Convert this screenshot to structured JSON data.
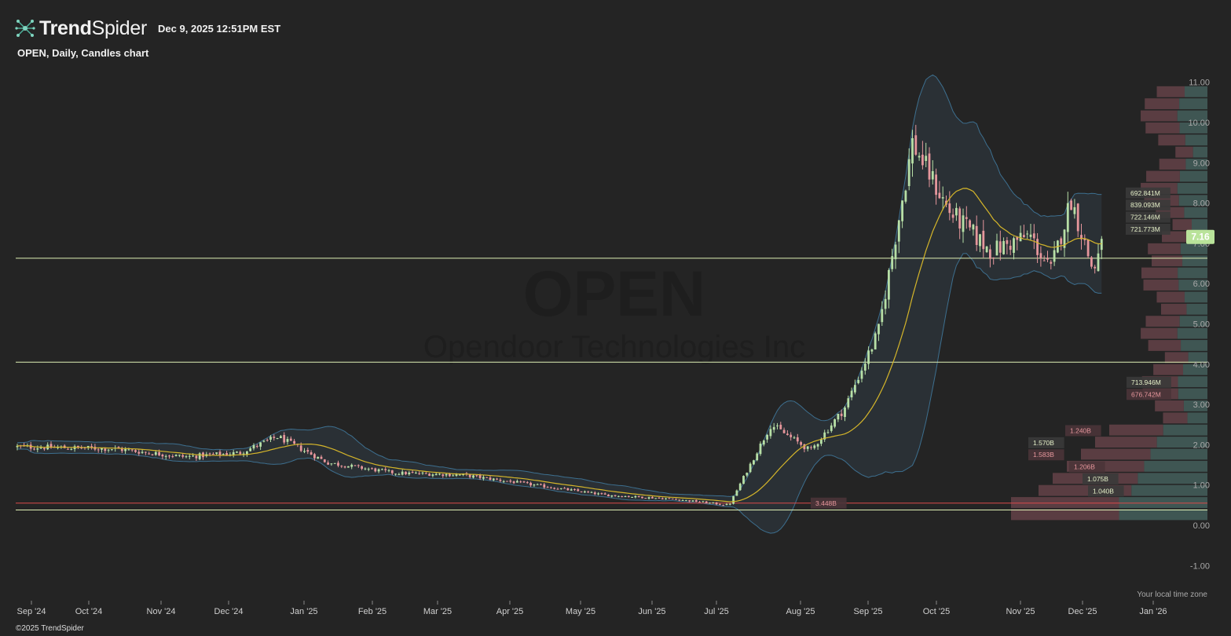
{
  "header": {
    "brand_bold": "Trend",
    "brand_regular": "Spider",
    "timestamp": "Dec 9, 2025 12:51PM EST"
  },
  "subtitle": "OPEN, Daily, Candles chart",
  "watermark": {
    "ticker": "OPEN",
    "company": "Opendoor Technologies Inc"
  },
  "footer": {
    "copyright": "©2025 TrendSpider",
    "timezone_note": "Your local time zone"
  },
  "colors": {
    "background": "#242424",
    "up": "#b7dfa6",
    "down": "#e6969c",
    "sma": "#d4b52a",
    "bollinger": "#3d6f8f",
    "hline": "#dff0b5",
    "red_line": "#d94a4a",
    "price_badge": "#b9e39a"
  },
  "chart_data": {
    "type": "candlestick",
    "title": "OPEN, Daily, Candles chart",
    "ylim": [
      -1.0,
      11.0
    ],
    "y_ticks": [
      "11.00",
      "10.00",
      "9.00",
      "8.00",
      "7.00",
      "6.00",
      "5.00",
      "4.00",
      "3.00",
      "2.00",
      "1.00",
      "0.00",
      "-1.00"
    ],
    "x_ticks": [
      "Sep '24",
      "Oct '24",
      "Nov '24",
      "Dec '24",
      "Jan '25",
      "Feb '25",
      "Mar '25",
      "Apr '25",
      "May '25",
      "Jun '25",
      "Jul '25",
      "Aug '25",
      "Sep '25",
      "Oct '25",
      "Nov '25",
      "Dec '25",
      "Jan '26"
    ],
    "last_price": "7.16",
    "horizontal_lines": [
      6.63,
      4.05,
      0.38
    ],
    "red_line": 0.55,
    "indicators": [
      "Bollinger Bands",
      "Moving average"
    ],
    "series_points": [
      [
        "Sep '24",
        1.95
      ],
      [
        "Oct '24",
        1.9
      ],
      [
        "Nov '24",
        1.7
      ],
      [
        "Dec '24",
        1.8
      ],
      [
        "Dec '24",
        2.2
      ],
      [
        "Jan '25",
        1.55
      ],
      [
        "Feb '25",
        1.3
      ],
      [
        "Mar '25",
        1.25
      ],
      [
        "Apr '25",
        1.0
      ],
      [
        "May '25",
        0.75
      ],
      [
        "Jun '25",
        0.65
      ],
      [
        "Jul '25",
        0.5
      ],
      [
        "Jul '25",
        2.5
      ],
      [
        "Aug '25",
        1.85
      ],
      [
        "Aug '25",
        2.9
      ],
      [
        "Sep '25",
        4.8
      ],
      [
        "Sep '25",
        9.5
      ],
      [
        "Oct '25",
        7.8
      ],
      [
        "Oct '25",
        6.8
      ],
      [
        "Nov '25",
        7.2
      ],
      [
        "Nov '25",
        6.3
      ],
      [
        "Nov '25",
        8.1
      ],
      [
        "Dec '25",
        6.3
      ],
      [
        "Dec '25",
        7.16
      ]
    ],
    "volume_profile_labels": [
      {
        "price": 8.25,
        "label": "692.841M",
        "color": "up"
      },
      {
        "price": 7.95,
        "label": "839.093M",
        "color": "up"
      },
      {
        "price": 7.65,
        "label": "722.146M",
        "color": "up"
      },
      {
        "price": 7.35,
        "label": "721.773M",
        "color": "up"
      },
      {
        "price": 3.55,
        "label": "713.946M",
        "color": "up"
      },
      {
        "price": 3.25,
        "label": "676.742M",
        "color": "down"
      },
      {
        "price": 2.35,
        "label": "1.240B",
        "color": "down"
      },
      {
        "price": 2.05,
        "label": "1.570B",
        "color": "up"
      },
      {
        "price": 1.75,
        "label": "1.583B",
        "color": "down"
      },
      {
        "price": 1.45,
        "label": "1.206B",
        "color": "down"
      },
      {
        "price": 1.15,
        "label": "1.075B",
        "color": "up"
      },
      {
        "price": 0.85,
        "label": "1.040B",
        "color": "up"
      },
      {
        "price": 0.55,
        "label": "3.448B",
        "color": "down"
      }
    ]
  }
}
